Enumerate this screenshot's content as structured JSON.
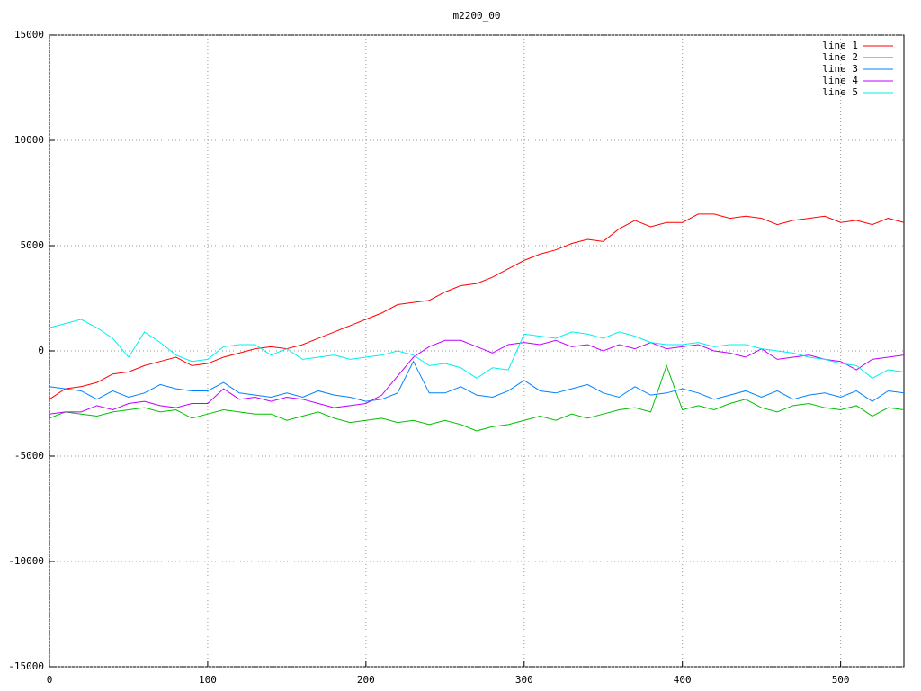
{
  "chart_data": {
    "type": "line",
    "title": "m2200_00",
    "x": [
      0,
      10,
      20,
      30,
      40,
      50,
      60,
      70,
      80,
      90,
      100,
      110,
      120,
      130,
      140,
      150,
      160,
      170,
      180,
      190,
      200,
      210,
      220,
      230,
      240,
      250,
      260,
      270,
      280,
      290,
      300,
      310,
      320,
      330,
      340,
      350,
      360,
      370,
      380,
      390,
      400,
      410,
      420,
      430,
      440,
      450,
      460,
      470,
      480,
      490,
      500,
      510,
      520,
      530,
      540
    ],
    "series": [
      {
        "name": "line 1",
        "color": "#ff0000",
        "values": [
          -2300,
          -1800,
          -1700,
          -1500,
          -1100,
          -1000,
          -700,
          -500,
          -300,
          -700,
          -600,
          -300,
          -100,
          100,
          200,
          100,
          300,
          600,
          900,
          1200,
          1500,
          1800,
          2200,
          2300,
          2400,
          2800,
          3100,
          3200,
          3500,
          3900,
          4300,
          4600,
          4800,
          5100,
          5300,
          5200,
          5800,
          6200,
          5900,
          6100,
          6100,
          6500,
          6500,
          6300,
          6400,
          6300,
          6000,
          6200,
          6300,
          6400,
          6100,
          6200,
          6000,
          6300,
          6100
        ]
      },
      {
        "name": "line 2",
        "color": "#00c000",
        "values": [
          -3200,
          -2900,
          -3000,
          -3100,
          -2900,
          -2800,
          -2700,
          -2900,
          -2800,
          -3200,
          -3000,
          -2800,
          -2900,
          -3000,
          -3000,
          -3300,
          -3100,
          -2900,
          -3200,
          -3400,
          -3300,
          -3200,
          -3400,
          -3300,
          -3500,
          -3300,
          -3500,
          -3800,
          -3600,
          -3500,
          -3300,
          -3100,
          -3300,
          -3000,
          -3200,
          -3000,
          -2800,
          -2700,
          -2900,
          -700,
          -2800,
          -2600,
          -2800,
          -2500,
          -2300,
          -2700,
          -2900,
          -2600,
          -2500,
          -2700,
          -2800,
          -2600,
          -3100,
          -2700,
          -2800
        ]
      },
      {
        "name": "line 3",
        "color": "#0080ff",
        "values": [
          -1700,
          -1800,
          -1900,
          -2300,
          -1900,
          -2200,
          -2000,
          -1600,
          -1800,
          -1900,
          -1900,
          -1500,
          -2000,
          -2100,
          -2200,
          -2000,
          -2200,
          -1900,
          -2100,
          -2200,
          -2400,
          -2300,
          -2000,
          -500,
          -2000,
          -2000,
          -1700,
          -2100,
          -2200,
          -1900,
          -1400,
          -1900,
          -2000,
          -1800,
          -1600,
          -2000,
          -2200,
          -1700,
          -2100,
          -2000,
          -1800,
          -2000,
          -2300,
          -2100,
          -1900,
          -2200,
          -1900,
          -2300,
          -2100,
          -2000,
          -2200,
          -1900,
          -2400,
          -1900,
          -2000
        ]
      },
      {
        "name": "line 4",
        "color": "#c000ff",
        "values": [
          -3000,
          -2900,
          -2900,
          -2600,
          -2800,
          -2500,
          -2400,
          -2600,
          -2700,
          -2500,
          -2500,
          -1800,
          -2300,
          -2200,
          -2400,
          -2200,
          -2300,
          -2500,
          -2700,
          -2600,
          -2500,
          -2100,
          -1200,
          -300,
          200,
          500,
          500,
          200,
          -100,
          300,
          400,
          300,
          500,
          200,
          300,
          0,
          300,
          100,
          400,
          100,
          200,
          300,
          0,
          -100,
          -300,
          100,
          -400,
          -300,
          -200,
          -400,
          -500,
          -900,
          -400,
          -300,
          -200
        ]
      },
      {
        "name": "line 5",
        "color": "#00eeee",
        "values": [
          1100,
          1300,
          1500,
          1100,
          600,
          -300,
          900,
          400,
          -200,
          -500,
          -400,
          200,
          300,
          300,
          -200,
          100,
          -400,
          -300,
          -200,
          -400,
          -300,
          -200,
          0,
          -200,
          -700,
          -600,
          -800,
          -1300,
          -800,
          -900,
          800,
          700,
          600,
          900,
          800,
          600,
          900,
          700,
          400,
          300,
          300,
          400,
          200,
          300,
          300,
          100,
          0,
          -100,
          -300,
          -400,
          -600,
          -700,
          -1300,
          -900,
          -1000
        ]
      }
    ],
    "xlim": [
      0,
      540
    ],
    "xticks": [
      0,
      100,
      200,
      300,
      400,
      500
    ],
    "ylim": [
      -15000,
      15000
    ],
    "yticks": [
      -15000,
      -10000,
      -5000,
      0,
      5000,
      10000,
      15000
    ],
    "grid": true,
    "legend": "top-right"
  }
}
